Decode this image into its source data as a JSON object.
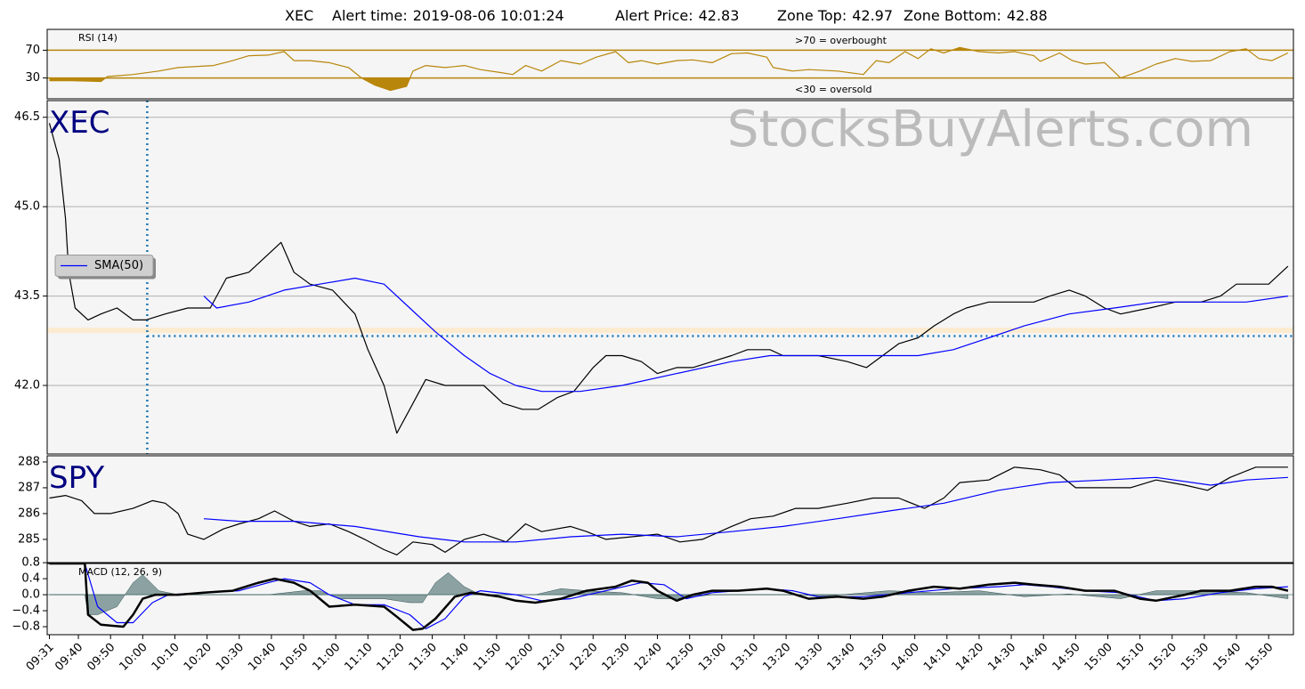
{
  "header": {
    "symbol": "XEC",
    "alert_time_label": "Alert time:",
    "alert_time": "2019-08-06 10:01:24",
    "alert_price_label": "Alert Price:",
    "alert_price": 42.83,
    "zone_top_label": "Zone Top:",
    "zone_top": 42.97,
    "zone_bottom_label": "Zone Bottom:",
    "zone_bottom": 42.88
  },
  "chart_data": [
    {
      "type": "line",
      "label": "RSI (14)",
      "annotations": [
        ">70 = overbought",
        "<30 = oversold"
      ],
      "xlim": [
        570.3,
        957.7
      ],
      "ylim": [
        0,
        100
      ],
      "yticks": [
        30,
        70
      ],
      "grid": true,
      "grid_color": "#b8860b",
      "fill_beyond_ticks": true,
      "series": [
        {
          "color": "#b8860b",
          "x": [
            571,
            578,
            587,
            589,
            597,
            605,
            611,
            622,
            628,
            633,
            639,
            644,
            647,
            652,
            658,
            664,
            668,
            672,
            677,
            682,
            684,
            688,
            694,
            700,
            705,
            711,
            715,
            719,
            724,
            730,
            736,
            741,
            747,
            751,
            755,
            760,
            766,
            771,
            777,
            783,
            788,
            794,
            796,
            802,
            807,
            816,
            824,
            828,
            832,
            837,
            841,
            845,
            849,
            854,
            860,
            866,
            871,
            877,
            879,
            885,
            889,
            893,
            899,
            904,
            910,
            915,
            921,
            926,
            932,
            938,
            943,
            947,
            951,
            956
          ],
          "values": [
            26,
            26,
            25,
            32,
            35,
            40,
            45,
            48,
            55,
            62,
            63,
            68,
            55,
            55,
            52,
            45,
            30,
            20,
            12,
            18,
            40,
            48,
            45,
            48,
            42,
            38,
            35,
            48,
            40,
            55,
            50,
            60,
            68,
            52,
            55,
            50,
            55,
            56,
            52,
            65,
            66,
            60,
            45,
            40,
            42,
            40,
            35,
            55,
            52,
            68,
            58,
            72,
            66,
            74,
            68,
            66,
            68,
            62,
            54,
            66,
            55,
            50,
            52,
            30,
            40,
            50,
            58,
            54,
            55,
            68,
            72,
            58,
            55,
            66
          ]
        }
      ]
    },
    {
      "type": "line",
      "label": "XEC",
      "watermark": "StocksBuyAlerts.com",
      "legend": "left",
      "xlim": [
        570.3,
        957.7
      ],
      "ylim": [
        40.85,
        46.78
      ],
      "yticks": [
        {
          "value": 42,
          "label": "42.0"
        },
        43.5,
        {
          "value": 45,
          "label": "45.0"
        },
        46.5
      ],
      "grid": true,
      "grid_color": "#b0b0b0",
      "series": [
        {
          "color": "#000000",
          "x": [
            571,
            574,
            576,
            577,
            579,
            583,
            587,
            592,
            597,
            601,
            607,
            614,
            621,
            626,
            633,
            639,
            643,
            647,
            652,
            659,
            666,
            670,
            675,
            679,
            683,
            688,
            694,
            700,
            706,
            712,
            718,
            723,
            729,
            734,
            740,
            744,
            749,
            755,
            760,
            766,
            771,
            777,
            783,
            788,
            795,
            799,
            810,
            819,
            825,
            830,
            835,
            841,
            846,
            852,
            856,
            863,
            871,
            877,
            882,
            888,
            893,
            899,
            904,
            913,
            921,
            929,
            935,
            940,
            946,
            950,
            954,
            956
          ],
          "values": [
            46.4,
            45.8,
            44.8,
            43.9,
            43.3,
            43.1,
            43.2,
            43.3,
            43.1,
            43.1,
            43.2,
            43.3,
            43.3,
            43.8,
            43.9,
            44.2,
            44.4,
            43.9,
            43.7,
            43.6,
            43.2,
            42.6,
            42.0,
            41.2,
            41.6,
            42.1,
            42.0,
            42.0,
            42.0,
            41.7,
            41.6,
            41.6,
            41.8,
            41.9,
            42.3,
            42.5,
            42.5,
            42.4,
            42.2,
            42.3,
            42.3,
            42.4,
            42.5,
            42.6,
            42.6,
            42.5,
            42.5,
            42.4,
            42.3,
            42.5,
            42.7,
            42.8,
            43.0,
            43.2,
            43.3,
            43.4,
            43.4,
            43.4,
            43.5,
            43.6,
            43.5,
            43.3,
            43.2,
            43.3,
            43.4,
            43.4,
            43.5,
            43.7,
            43.7,
            43.7,
            43.9,
            44.0
          ]
        },
        {
          "name": "SMA(50)",
          "color": "#0000ff",
          "x": [
            619,
            623,
            633,
            644,
            655,
            666,
            675,
            683,
            691,
            700,
            708,
            716,
            724,
            736,
            749,
            766,
            783,
            795,
            810,
            827,
            841,
            852,
            863,
            874,
            888,
            902,
            915,
            929,
            943,
            956
          ],
          "values": [
            43.5,
            43.3,
            43.4,
            43.6,
            43.7,
            43.8,
            43.7,
            43.3,
            42.9,
            42.5,
            42.2,
            42.0,
            41.9,
            41.9,
            42.0,
            42.2,
            42.4,
            42.5,
            42.5,
            42.5,
            42.5,
            42.6,
            42.8,
            43.0,
            43.2,
            43.3,
            43.4,
            43.4,
            43.4,
            43.5
          ]
        }
      ]
    },
    {
      "type": "line",
      "label": "SPY",
      "xlim": [
        570.3,
        957.7
      ],
      "ylim": [
        284.1,
        288.24
      ],
      "yticks": [
        285,
        286,
        287,
        288
      ],
      "grid": false,
      "series": [
        {
          "color": "#000000",
          "x": [
            571,
            576,
            581,
            585,
            590,
            597,
            603,
            607,
            611,
            614,
            619,
            625,
            630,
            636,
            641,
            647,
            652,
            658,
            664,
            669,
            675,
            679,
            684,
            690,
            694,
            700,
            706,
            713,
            719,
            724,
            733,
            738,
            744,
            752,
            760,
            767,
            774,
            783,
            789,
            796,
            803,
            810,
            819,
            827,
            835,
            843,
            849,
            854,
            863,
            871,
            879,
            885,
            890,
            899,
            907,
            915,
            924,
            931,
            938,
            946,
            956
          ],
          "values": [
            286.6,
            286.7,
            286.5,
            286.0,
            286.0,
            286.2,
            286.5,
            286.4,
            286.0,
            285.2,
            285.0,
            285.4,
            285.6,
            285.8,
            286.1,
            285.7,
            285.5,
            285.6,
            285.3,
            285.0,
            284.6,
            284.4,
            284.9,
            284.8,
            284.5,
            285.0,
            285.2,
            284.9,
            285.6,
            285.3,
            285.5,
            285.3,
            285.0,
            285.1,
            285.2,
            284.9,
            285.0,
            285.5,
            285.8,
            285.9,
            286.2,
            286.2,
            286.4,
            286.6,
            286.6,
            286.2,
            286.6,
            287.2,
            287.3,
            287.8,
            287.7,
            287.5,
            287.0,
            287.0,
            287.0,
            287.3,
            287.1,
            286.9,
            287.4,
            287.8,
            287.8
          ]
        },
        {
          "color": "#0000ff",
          "x": [
            619,
            630,
            647,
            666,
            686,
            700,
            716,
            733,
            749,
            766,
            783,
            799,
            816,
            832,
            849,
            866,
            882,
            899,
            915,
            932,
            943,
            956
          ],
          "values": [
            285.8,
            285.7,
            285.7,
            285.5,
            285.1,
            284.9,
            284.9,
            285.1,
            285.2,
            285.1,
            285.3,
            285.5,
            285.8,
            286.1,
            286.4,
            286.9,
            287.2,
            287.3,
            287.4,
            287.1,
            287.3,
            287.4
          ]
        }
      ]
    },
    {
      "type": "line",
      "label": "MACD (12, 26, 9)",
      "xlim": [
        570.3,
        957.7
      ],
      "ylim": [
        -1.0,
        0.78
      ],
      "yticks": [
        {
          "value": -0.8,
          "label": "−0.8"
        },
        {
          "value": -0.4,
          "label": "−0.4"
        },
        {
          "value": 0,
          "label": "0.0"
        },
        0.4,
        0.8
      ],
      "grid": false,
      "zero_line": true,
      "xticks": [
        {
          "value": 571,
          "label": "09:31"
        },
        {
          "value": 580,
          "label": "09:40"
        },
        {
          "value": 590,
          "label": "09:50"
        },
        {
          "value": 600,
          "label": "10:00"
        },
        {
          "value": 610,
          "label": "10:10"
        },
        {
          "value": 620,
          "label": "10:20"
        },
        {
          "value": 630,
          "label": "10:30"
        },
        {
          "value": 640,
          "label": "10:40"
        },
        {
          "value": 650,
          "label": "10:50"
        },
        {
          "value": 660,
          "label": "11:00"
        },
        {
          "value": 670,
          "label": "11:10"
        },
        {
          "value": 680,
          "label": "11:20"
        },
        {
          "value": 690,
          "label": "11:30"
        },
        {
          "value": 700,
          "label": "11:40"
        },
        {
          "value": 710,
          "label": "11:50"
        },
        {
          "value": 720,
          "label": "12:00"
        },
        {
          "value": 730,
          "label": "12:10"
        },
        {
          "value": 740,
          "label": "12:20"
        },
        {
          "value": 750,
          "label": "12:30"
        },
        {
          "value": 760,
          "label": "12:40"
        },
        {
          "value": 770,
          "label": "12:50"
        },
        {
          "value": 780,
          "label": "13:00"
        },
        {
          "value": 790,
          "label": "13:10"
        },
        {
          "value": 800,
          "label": "13:20"
        },
        {
          "value": 810,
          "label": "13:30"
        },
        {
          "value": 820,
          "label": "13:40"
        },
        {
          "value": 830,
          "label": "13:50"
        },
        {
          "value": 840,
          "label": "14:00"
        },
        {
          "value": 850,
          "label": "14:10"
        },
        {
          "value": 860,
          "label": "14:20"
        },
        {
          "value": 870,
          "label": "14:30"
        },
        {
          "value": 880,
          "label": "14:40"
        },
        {
          "value": 890,
          "label": "14:50"
        },
        {
          "value": 900,
          "label": "15:00"
        },
        {
          "value": 910,
          "label": "15:10"
        },
        {
          "value": 920,
          "label": "15:20"
        },
        {
          "value": 930,
          "label": "15:30"
        },
        {
          "value": 940,
          "label": "15:40"
        },
        {
          "value": 950,
          "label": "15:50"
        }
      ],
      "series": [
        {
          "color": "#5f7f7f",
          "area": true,
          "x": [
            571,
            582,
            583,
            586,
            592,
            597,
            600,
            605,
            611,
            639,
            650,
            655,
            661,
            675,
            683,
            687,
            691,
            695,
            700,
            705,
            722,
            730,
            738,
            749,
            760,
            766,
            777,
            805,
            810,
            832,
            846,
            860,
            874,
            888,
            904,
            915,
            929,
            943,
            956
          ],
          "values": [
            0,
            0,
            -0.5,
            -0.5,
            -0.3,
            0.3,
            0.5,
            0.1,
            0,
            0,
            0.1,
            0.1,
            -0.1,
            -0.1,
            -0.2,
            -0.2,
            0.3,
            0.55,
            0.2,
            0,
            0,
            0.15,
            0.1,
            0.05,
            -0.1,
            -0.1,
            0,
            0,
            -0.05,
            0.1,
            0.05,
            0.1,
            -0.05,
            0.02,
            -0.1,
            0.1,
            0.1,
            0.05,
            -0.1
          ]
        },
        {
          "color": "#0000ff",
          "x": [
            571,
            582,
            586,
            592,
            597,
            603,
            608,
            619,
            630,
            639,
            644,
            652,
            658,
            666,
            675,
            683,
            688,
            694,
            700,
            705,
            716,
            724,
            733,
            744,
            755,
            762,
            769,
            777,
            794,
            802,
            810,
            824,
            838,
            852,
            866,
            874,
            882,
            893,
            904,
            915,
            924,
            935,
            946,
            956
          ],
          "values": [
            0.78,
            0.78,
            -0.3,
            -0.7,
            -0.7,
            -0.2,
            0.0,
            0.05,
            0.1,
            0.3,
            0.4,
            0.3,
            0.0,
            -0.25,
            -0.25,
            -0.5,
            -0.85,
            -0.6,
            -0.05,
            0.1,
            0.0,
            -0.15,
            -0.1,
            0.1,
            0.3,
            0.25,
            -0.1,
            0.05,
            0.15,
            0.1,
            -0.05,
            -0.05,
            0.05,
            0.15,
            0.2,
            0.25,
            0.2,
            0.1,
            0.05,
            -0.15,
            -0.1,
            0.05,
            0.15,
            0.2
          ]
        },
        {
          "color": "#000000",
          "width": 2.5,
          "x": [
            571,
            582,
            583,
            587,
            594,
            597,
            600,
            604,
            611,
            619,
            628,
            636,
            641,
            647,
            652,
            658,
            666,
            675,
            679,
            684,
            687,
            691,
            697,
            702,
            711,
            716,
            722,
            730,
            738,
            747,
            752,
            757,
            760,
            766,
            771,
            777,
            785,
            794,
            799,
            807,
            816,
            824,
            830,
            838,
            846,
            854,
            863,
            871,
            877,
            885,
            893,
            902,
            910,
            915,
            924,
            929,
            938,
            946,
            951,
            956
          ],
          "values": [
            0.78,
            0.78,
            -0.5,
            -0.75,
            -0.8,
            -0.5,
            -0.1,
            0.0,
            0.0,
            0.05,
            0.1,
            0.3,
            0.4,
            0.3,
            0.1,
            -0.3,
            -0.25,
            -0.3,
            -0.55,
            -0.88,
            -0.85,
            -0.6,
            -0.05,
            0.05,
            -0.05,
            -0.15,
            -0.2,
            -0.1,
            0.1,
            0.2,
            0.35,
            0.3,
            0.1,
            -0.15,
            0.0,
            0.1,
            0.1,
            0.15,
            0.1,
            -0.1,
            -0.05,
            -0.1,
            -0.05,
            0.1,
            0.2,
            0.15,
            0.25,
            0.3,
            0.25,
            0.2,
            0.1,
            0.1,
            -0.1,
            -0.15,
            0.0,
            0.1,
            0.1,
            0.2,
            0.2,
            0.1
          ]
        }
      ]
    }
  ]
}
